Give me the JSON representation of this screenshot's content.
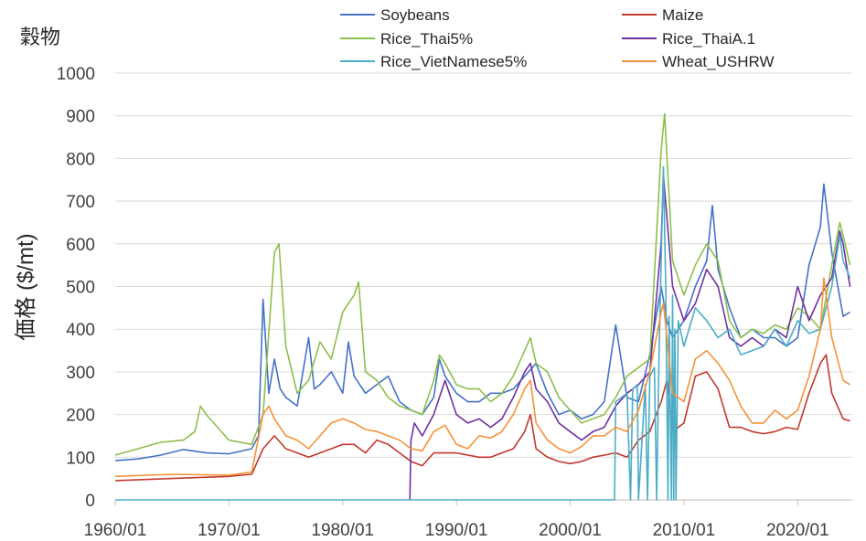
{
  "chart_data": {
    "type": "line",
    "title": "穀物",
    "ylabel": "価格 ($/mt)",
    "xlabel": "",
    "ylim": [
      0,
      1000
    ],
    "yticks": [
      0,
      100,
      200,
      300,
      400,
      500,
      600,
      700,
      800,
      900,
      1000
    ],
    "xlim": [
      1960.0,
      2024.8
    ],
    "xticks": [
      {
        "label": "1960/01",
        "value": 1960
      },
      {
        "label": "1970/01",
        "value": 1970
      },
      {
        "label": "1980/01",
        "value": 1980
      },
      {
        "label": "1990/01",
        "value": 1990
      },
      {
        "label": "2000/01",
        "value": 2000
      },
      {
        "label": "2010/01",
        "value": 2010
      },
      {
        "label": "2020/01",
        "value": 2020
      }
    ],
    "grid": "horizontal",
    "legend_position": "top",
    "series": [
      {
        "name": "Soybeans",
        "color": "#4472C4",
        "x": [
          1960,
          1962,
          1964,
          1966,
          1968,
          1970,
          1972,
          1972.6,
          1973,
          1973.5,
          1974,
          1974.5,
          1975,
          1976,
          1977,
          1977.5,
          1978,
          1979,
          1980,
          1980.5,
          1981,
          1982,
          1983,
          1984,
          1985,
          1986,
          1987,
          1988,
          1988.5,
          1989,
          1990,
          1991,
          1992,
          1993,
          1994,
          1995,
          1996,
          1997,
          1998,
          1999,
          2000,
          2001,
          2002,
          2003,
          2004,
          2005,
          2006,
          2007,
          2008,
          2008.5,
          2009,
          2010,
          2011,
          2012,
          2012.5,
          2013,
          2014,
          2015,
          2016,
          2017,
          2018,
          2019,
          2020,
          2021,
          2022,
          2022.3,
          2023,
          2024,
          2024.6
        ],
        "y": [
          92,
          96,
          105,
          118,
          110,
          108,
          120,
          150,
          470,
          250,
          330,
          260,
          240,
          220,
          380,
          260,
          270,
          300,
          250,
          370,
          290,
          250,
          270,
          290,
          230,
          210,
          200,
          240,
          330,
          290,
          250,
          230,
          230,
          250,
          250,
          260,
          290,
          320,
          250,
          200,
          210,
          190,
          200,
          230,
          410,
          240,
          230,
          340,
          500,
          420,
          380,
          420,
          500,
          560,
          690,
          540,
          450,
          380,
          400,
          380,
          380,
          360,
          380,
          550,
          640,
          740,
          580,
          430,
          440
        ]
      },
      {
        "name": "Maize",
        "color": "#C0392B",
        "x": [
          1960,
          1965,
          1970,
          1972,
          1973,
          1974,
          1975,
          1976,
          1977,
          1978,
          1979,
          1980,
          1981,
          1982,
          1983,
          1984,
          1985,
          1986,
          1987,
          1988,
          1989,
          1990,
          1991,
          1992,
          1993,
          1994,
          1995,
          1996,
          1996.5,
          1997,
          1998,
          1999,
          2000,
          2001,
          2002,
          2003,
          2004,
          2005,
          2006,
          2007,
          2008,
          2008.5,
          2009,
          2010,
          2011,
          2012,
          2013,
          2014,
          2015,
          2016,
          2017,
          2018,
          2019,
          2020,
          2021,
          2022,
          2022.5,
          2023,
          2024,
          2024.6
        ],
        "y": [
          45,
          50,
          55,
          60,
          120,
          150,
          120,
          110,
          100,
          110,
          120,
          130,
          130,
          110,
          140,
          130,
          110,
          90,
          80,
          110,
          110,
          110,
          105,
          100,
          100,
          110,
          120,
          160,
          200,
          120,
          100,
          90,
          85,
          90,
          100,
          105,
          110,
          100,
          140,
          160,
          230,
          280,
          160,
          180,
          290,
          300,
          260,
          170,
          170,
          160,
          155,
          160,
          170,
          165,
          250,
          320,
          340,
          250,
          190,
          185
        ]
      },
      {
        "name": "Rice_Thai5%",
        "color": "#8CBF4B",
        "x": [
          1960,
          1962,
          1964,
          1966,
          1967,
          1967.5,
          1968,
          1970,
          1972,
          1973,
          1974,
          1974.4,
          1975,
          1976,
          1977,
          1978,
          1979,
          1980,
          1981,
          1981.4,
          1982,
          1983,
          1984,
          1985,
          1986,
          1987,
          1988,
          1988.5,
          1989,
          1990,
          1991,
          1992,
          1993,
          1994,
          1995,
          1996,
          1996.5,
          1997,
          1998,
          1999,
          2000,
          2001,
          2002,
          2003,
          2004,
          2005,
          2006,
          2007,
          2008,
          2008.3,
          2009,
          2010,
          2011,
          2012,
          2013,
          2014,
          2015,
          2016,
          2017,
          2018,
          2019,
          2020,
          2021,
          2022,
          2023,
          2023.7,
          2024,
          2024.6
        ],
        "y": [
          105,
          120,
          135,
          140,
          160,
          220,
          200,
          140,
          130,
          200,
          580,
          600,
          360,
          250,
          280,
          370,
          330,
          440,
          480,
          510,
          300,
          280,
          240,
          220,
          210,
          200,
          280,
          340,
          320,
          270,
          260,
          260,
          230,
          250,
          290,
          350,
          380,
          320,
          300,
          240,
          210,
          180,
          190,
          200,
          240,
          290,
          310,
          330,
          820,
          905,
          560,
          480,
          550,
          600,
          560,
          420,
          380,
          400,
          390,
          410,
          400,
          450,
          430,
          400,
          550,
          650,
          620,
          550
        ]
      },
      {
        "name": "Rice_ThaiA.1",
        "color": "#7030A0",
        "x": [
          1985.9,
          1986,
          1986.3,
          1987,
          1988,
          1989,
          1990,
          1991,
          1992,
          1993,
          1994,
          1995,
          1996,
          1996.5,
          1997,
          1998,
          1999,
          2000,
          2001,
          2002,
          2003,
          2004,
          2005,
          2006,
          2007,
          2008,
          2008.2,
          2009,
          2010,
          2011,
          2012,
          2013,
          2014,
          2015,
          2016,
          2017,
          2018,
          2019,
          2020,
          2021,
          2022,
          2023,
          2023.7,
          2024,
          2024.6
        ],
        "y": [
          0,
          140,
          180,
          150,
          200,
          280,
          200,
          180,
          190,
          170,
          190,
          240,
          300,
          320,
          260,
          230,
          180,
          160,
          140,
          160,
          170,
          220,
          250,
          270,
          300,
          600,
          760,
          500,
          420,
          460,
          540,
          500,
          380,
          360,
          380,
          360,
          400,
          380,
          500,
          420,
          480,
          520,
          630,
          600,
          500
        ]
      },
      {
        "name": "Rice_VietNamese5%",
        "color": "#4BACC6",
        "x": [
          1960,
          2003.9,
          2004,
          2005,
          2005.3,
          2005.5,
          2005.9,
          2006,
          2006.6,
          2006.8,
          2007,
          2007.4,
          2007.6,
          2007.8,
          2008,
          2008.2,
          2008.4,
          2008.6,
          2008.7,
          2008.9,
          2009,
          2009.1,
          2009.2,
          2009.3,
          2009.5,
          2010,
          2011,
          2012,
          2013,
          2014,
          2015,
          2016,
          2017,
          2018,
          2019,
          2020,
          2021,
          2022,
          2023,
          2023.7,
          2024,
          2024.6
        ],
        "y": [
          0,
          0,
          230,
          250,
          0,
          260,
          270,
          0,
          270,
          0,
          290,
          310,
          0,
          320,
          560,
          780,
          500,
          0,
          430,
          0,
          480,
          0,
          400,
          0,
          420,
          360,
          450,
          420,
          380,
          400,
          340,
          350,
          360,
          400,
          360,
          420,
          390,
          400,
          500,
          620,
          560,
          520
        ]
      },
      {
        "name": "Wheat_USHRW",
        "color": "#F4923A",
        "x": [
          1960,
          1965,
          1970,
          1972,
          1973,
          1973.5,
          1974,
          1975,
          1976,
          1977,
          1978,
          1979,
          1980,
          1981,
          1982,
          1983,
          1984,
          1985,
          1986,
          1987,
          1988,
          1989,
          1990,
          1991,
          1992,
          1993,
          1994,
          1995,
          1996,
          1996.5,
          1997,
          1998,
          1999,
          2000,
          2001,
          2002,
          2003,
          2004,
          2005,
          2006,
          2007,
          2008,
          2008.2,
          2009,
          2010,
          2011,
          2012,
          2013,
          2014,
          2015,
          2016,
          2017,
          2018,
          2019,
          2020,
          2021,
          2022,
          2022.3,
          2023,
          2024,
          2024.6
        ],
        "y": [
          55,
          60,
          58,
          65,
          200,
          220,
          190,
          150,
          140,
          120,
          150,
          180,
          190,
          180,
          165,
          160,
          150,
          140,
          120,
          115,
          160,
          175,
          130,
          120,
          150,
          145,
          160,
          200,
          260,
          280,
          180,
          140,
          120,
          110,
          125,
          150,
          150,
          170,
          160,
          210,
          300,
          440,
          460,
          250,
          230,
          330,
          350,
          320,
          280,
          220,
          180,
          180,
          210,
          190,
          210,
          290,
          400,
          520,
          380,
          280,
          270
        ]
      }
    ]
  }
}
